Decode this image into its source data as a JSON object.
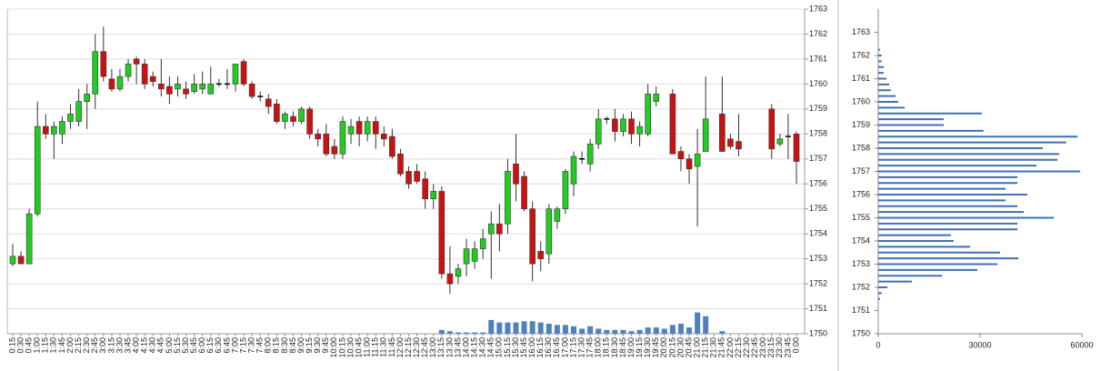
{
  "chart_data": [
    {
      "type": "candlestick",
      "categories": [
        "0:15",
        "0:30",
        "0:45",
        "1:00",
        "1:15",
        "1:30",
        "1:45",
        "2:00",
        "2:15",
        "2:30",
        "2:45",
        "3:00",
        "3:15",
        "3:30",
        "3:45",
        "4:00",
        "4:15",
        "4:30",
        "4:45",
        "5:00",
        "5:15",
        "5:30",
        "5:45",
        "6:00",
        "6:15",
        "6:30",
        "6:45",
        "7:00",
        "7:15",
        "7:30",
        "7:45",
        "8:00",
        "8:15",
        "8:30",
        "8:45",
        "9:00",
        "9:15",
        "9:30",
        "9:45",
        "10:00",
        "10:15",
        "10:30",
        "10:45",
        "11:00",
        "11:15",
        "11:30",
        "11:45",
        "12:00",
        "12:15",
        "12:30",
        "12:45",
        "13:00",
        "13:15",
        "13:30",
        "13:45",
        "14:00",
        "14:15",
        "14:30",
        "14:45",
        "15:00",
        "15:15",
        "15:30",
        "15:45",
        "16:00",
        "16:15",
        "16:30",
        "16:45",
        "17:00",
        "17:15",
        "17:30",
        "17:45",
        "18:00",
        "18:15",
        "18:30",
        "18:45",
        "19:00",
        "19:15",
        "19:30",
        "19:45",
        "20:00",
        "20:15",
        "20:30",
        "20:45",
        "21:00",
        "21:15",
        "21:30",
        "21:45",
        "22:00",
        "22:15",
        "22:30",
        "22:45",
        "23:00",
        "23:15",
        "23:30",
        "23:45",
        "0:00"
      ],
      "open": [
        1752.8,
        1753.1,
        1752.8,
        1754.8,
        1758.3,
        1758.0,
        1758.0,
        1758.5,
        1758.5,
        1759.3,
        1759.6,
        1761.3,
        1760.2,
        1759.8,
        1760.3,
        1761.0,
        1760.8,
        1760.3,
        1760.0,
        1759.9,
        1759.8,
        1759.8,
        1759.7,
        1759.8,
        1759.6,
        1760.0,
        1760.0,
        1760.0,
        1760.9,
        1760.0,
        1759.5,
        1759.4,
        1759.2,
        1758.5,
        1758.7,
        1758.5,
        1759.0,
        1758.0,
        1758.0,
        1757.5,
        1757.2,
        1758.0,
        1758.5,
        1758.0,
        1758.5,
        1758.0,
        1757.9,
        1757.2,
        1756.5,
        1756.5,
        1756.2,
        1755.4,
        1755.7,
        1752.4,
        1752.3,
        1752.8,
        1752.9,
        1753.4,
        1754.0,
        1754.4,
        1754.4,
        1756.8,
        1756.3,
        1755.0,
        1753.3,
        1753.2,
        1754.5,
        1755.0,
        1756.0,
        1757.0,
        1756.8,
        1757.6,
        1758.6,
        1758.6,
        1758.1,
        1758.6,
        1758.0,
        1758.0,
        1759.3,
        null,
        1759.6,
        1757.3,
        1757.0,
        1756.7,
        1757.3,
        null,
        1758.8,
        1757.8,
        1757.7,
        null,
        null,
        null,
        1759.0,
        1757.6,
        1757.9,
        1758.0
      ],
      "high": [
        1753.6,
        1753.3,
        1755.0,
        1759.3,
        1758.8,
        1758.5,
        1758.7,
        1759.2,
        1759.8,
        1760.0,
        1762.0,
        1762.3,
        1760.6,
        1760.6,
        1761.0,
        1761.1,
        1761.0,
        1760.5,
        1761.0,
        1760.3,
        1760.3,
        1760.1,
        1760.4,
        1760.5,
        1760.7,
        1760.2,
        1760.6,
        1760.8,
        1761.0,
        1760.1,
        1759.7,
        1759.6,
        1759.4,
        1758.9,
        1758.9,
        1759.1,
        1759.1,
        1758.2,
        1758.4,
        1757.8,
        1758.7,
        1758.6,
        1758.7,
        1758.7,
        1758.7,
        1758.3,
        1758.2,
        1757.4,
        1756.7,
        1756.8,
        1756.5,
        1756.0,
        1755.9,
        1753.5,
        1752.8,
        1753.8,
        1753.7,
        1754.2,
        1754.9,
        1755.2,
        1757.0,
        1758.0,
        1756.5,
        1755.3,
        1753.7,
        1755.2,
        1755.1,
        1756.6,
        1757.3,
        1757.3,
        1757.8,
        1759.0,
        1758.7,
        1759.0,
        1758.8,
        1758.9,
        1758.5,
        1760.0,
        1759.9,
        null,
        1759.8,
        1757.5,
        1757.2,
        1758.2,
        1760.3,
        null,
        1760.3,
        1758.0,
        1758.8,
        null,
        null,
        null,
        1759.2,
        1758.0,
        1758.8,
        1758.1
      ],
      "low": [
        1752.7,
        1752.8,
        1752.8,
        1754.7,
        1757.8,
        1757.0,
        1757.6,
        1758.2,
        1758.3,
        1758.2,
        1759.0,
        1760.1,
        1759.7,
        1759.7,
        1760.1,
        1760.0,
        1759.8,
        1759.9,
        1759.5,
        1759.2,
        1759.5,
        1759.4,
        1759.6,
        1759.6,
        1759.6,
        1759.9,
        1759.8,
        1759.7,
        1759.9,
        1759.4,
        1759.3,
        1758.8,
        1758.4,
        1758.2,
        1758.3,
        1758.4,
        1757.8,
        1757.5,
        1757.1,
        1757.0,
        1757.0,
        1757.6,
        1757.5,
        1757.7,
        1757.4,
        1757.5,
        1757.0,
        1756.3,
        1755.8,
        1756.0,
        1755.0,
        1755.0,
        1752.2,
        1751.6,
        1752.0,
        1752.3,
        1752.6,
        1753.0,
        1752.2,
        1753.3,
        1754.0,
        1755.3,
        1754.9,
        1752.1,
        1752.5,
        1752.8,
        1754.2,
        1754.8,
        1755.5,
        1756.8,
        1756.5,
        1757.4,
        1758.4,
        1757.7,
        1757.9,
        1757.6,
        1757.5,
        1757.9,
        1759.1,
        null,
        1757.2,
        1756.5,
        1756.0,
        1754.3,
        1757.3,
        null,
        1757.3,
        1757.4,
        1757.1,
        null,
        null,
        null,
        1757.0,
        1757.5,
        1757.0,
        1756.0
      ],
      "close": [
        1753.1,
        1752.8,
        1754.8,
        1758.3,
        1758.0,
        1758.3,
        1758.5,
        1758.8,
        1759.3,
        1759.6,
        1761.3,
        1760.3,
        1759.8,
        1760.3,
        1760.8,
        1760.8,
        1760.0,
        1760.1,
        1759.8,
        1759.6,
        1760.0,
        1759.6,
        1760.0,
        1760.0,
        1760.0,
        1760.0,
        1760.0,
        1760.8,
        1760.0,
        1759.5,
        1759.5,
        1759.1,
        1758.5,
        1758.8,
        1758.5,
        1759.0,
        1758.0,
        1757.8,
        1757.2,
        1757.2,
        1758.5,
        1758.3,
        1758.0,
        1758.5,
        1758.0,
        1757.8,
        1757.1,
        1756.4,
        1756.0,
        1756.1,
        1755.4,
        1755.7,
        1752.4,
        1752.0,
        1752.6,
        1753.4,
        1753.4,
        1753.8,
        1754.4,
        1754.0,
        1756.5,
        1756.0,
        1755.0,
        1752.8,
        1753.0,
        1755.0,
        1755.0,
        1756.5,
        1757.1,
        1757.0,
        1757.6,
        1758.6,
        1758.6,
        1758.1,
        1758.6,
        1758.0,
        1758.3,
        1759.6,
        1759.6,
        null,
        1757.2,
        1757.0,
        1756.6,
        1757.2,
        1758.6,
        null,
        1757.3,
        1757.5,
        1757.4,
        null,
        null,
        null,
        1757.4,
        1757.8,
        1757.9,
        1756.9
      ],
      "volume": [
        null,
        null,
        null,
        null,
        null,
        null,
        null,
        null,
        null,
        null,
        null,
        null,
        null,
        null,
        null,
        null,
        null,
        null,
        null,
        null,
        null,
        null,
        null,
        null,
        null,
        null,
        null,
        null,
        null,
        null,
        null,
        null,
        null,
        null,
        null,
        null,
        null,
        null,
        null,
        null,
        null,
        null,
        null,
        null,
        null,
        null,
        null,
        null,
        null,
        null,
        null,
        null,
        1750.15,
        1750.1,
        1750.05,
        1750.05,
        1750.05,
        1750.05,
        1750.55,
        1750.45,
        1750.45,
        1750.45,
        1750.5,
        1750.5,
        1750.45,
        1750.4,
        1750.35,
        1750.35,
        1750.3,
        1750.2,
        1750.3,
        1750.2,
        1750.15,
        1750.15,
        1750.15,
        1750.1,
        1750.15,
        1750.25,
        1750.25,
        1750.2,
        1750.35,
        1750.4,
        1750.25,
        1750.85,
        1750.7,
        null,
        1750.1,
        null,
        null,
        null,
        null,
        null,
        null,
        null,
        null,
        null
      ],
      "up_color": "#22cc22",
      "down_color": "#cc1111",
      "doji_color": "#000000",
      "volume_color": "#4f81bd",
      "ylim": [
        1750,
        1763
      ],
      "yticks": [
        1750,
        1751,
        1752,
        1753,
        1754,
        1755,
        1756,
        1757,
        1758,
        1759,
        1760,
        1761,
        1762,
        1763
      ],
      "grid": true
    },
    {
      "type": "hbar",
      "y": [
        1762.25,
        1762.0,
        1761.75,
        1761.5,
        1761.25,
        1761.0,
        1760.75,
        1760.5,
        1760.25,
        1760.0,
        1759.75,
        1759.5,
        1759.25,
        1759.0,
        1758.75,
        1758.5,
        1758.25,
        1758.0,
        1757.75,
        1757.5,
        1757.25,
        1757.0,
        1756.75,
        1756.5,
        1756.25,
        1756.0,
        1755.75,
        1755.5,
        1755.25,
        1755.0,
        1754.75,
        1754.5,
        1754.25,
        1754.0,
        1753.75,
        1753.5,
        1753.25,
        1753.0,
        1752.75,
        1752.5,
        1752.25,
        1752.0,
        1751.75,
        1751.5
      ],
      "values": [
        500,
        1000,
        1000,
        1600,
        1600,
        2400,
        3200,
        3700,
        5100,
        5900,
        7800,
        30500,
        19300,
        19300,
        31000,
        58700,
        55400,
        48500,
        53300,
        52800,
        46600,
        59500,
        41000,
        41000,
        37500,
        43900,
        37500,
        41000,
        42900,
        51700,
        41000,
        41000,
        21400,
        22200,
        27100,
        35900,
        41300,
        35100,
        29200,
        18800,
        9900,
        2700,
        1000,
        500
      ],
      "color": "#3f6fb5",
      "xlim": [
        0,
        60000
      ],
      "xticks": [
        0,
        30000,
        60000
      ],
      "ylim": [
        1750,
        1764
      ],
      "yticks": [
        1750,
        1751,
        1752,
        1753,
        1754,
        1755,
        1756,
        1757,
        1758,
        1759,
        1760,
        1761,
        1762,
        1763
      ]
    }
  ]
}
